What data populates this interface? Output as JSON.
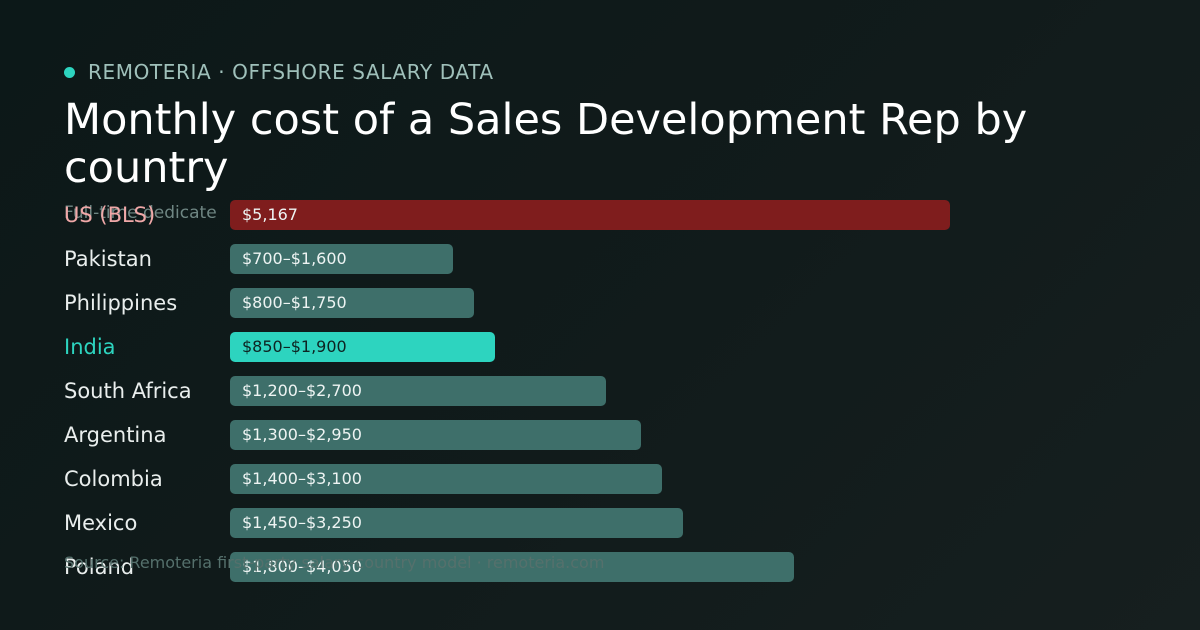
{
  "header": {
    "brand": "REMOTERIA · OFFSHORE SALARY DATA",
    "title": "Monthly cost of a Sales Development Rep by country",
    "subtitle": "Full-time dedicate",
    "source": "Source: Remoteria first-party salary-country model · remoteria.com"
  },
  "colors": {
    "accent": "#2dd4bf",
    "us_bar": "#7f1d1d",
    "bar": "#3e6f6a",
    "background": "#111b1b"
  },
  "chart_data": {
    "type": "bar",
    "orientation": "horizontal",
    "unit": "USD per month",
    "xlim": [
      0,
      5167
    ],
    "grid": false,
    "legend": "none",
    "categories": [
      "US (BLS)",
      "Pakistan",
      "Philippines",
      "India",
      "South Africa",
      "Argentina",
      "Colombia",
      "Mexico",
      "Poland"
    ],
    "ranges": [
      [
        0,
        5167
      ],
      [
        700,
        1600
      ],
      [
        800,
        1750
      ],
      [
        850,
        1900
      ],
      [
        1200,
        2700
      ],
      [
        1300,
        2950
      ],
      [
        1400,
        3100
      ],
      [
        1450,
        3250
      ],
      [
        1800,
        4050
      ]
    ],
    "value_labels": [
      "$5,167",
      "$700–$1,600",
      "$800–$1,750",
      "$850–$1,900",
      "$1,200–$2,700",
      "$1,300–$2,950",
      "$1,400–$3,100",
      "$1,450–$3,250",
      "$1,800–$4,050"
    ],
    "highlight": "India",
    "baseline": "US (BLS)"
  }
}
